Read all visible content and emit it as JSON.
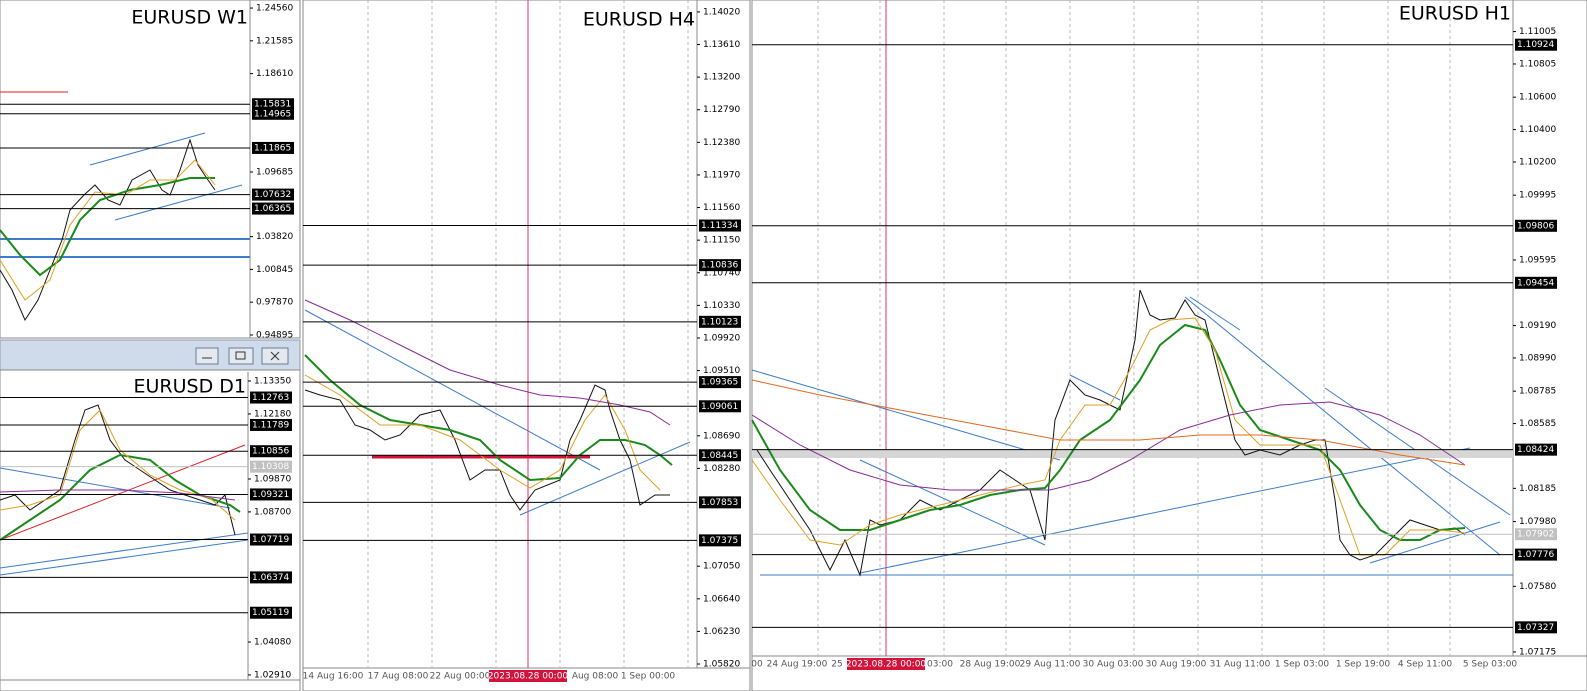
{
  "panels": [
    {
      "title": "EURUSD W1",
      "ylim": [
        0.9462,
        1.2529
      ],
      "yticks": [
        {
          "value": 1.2456,
          "label": "1.24560"
        },
        {
          "value": 1.21585,
          "label": "1.21585"
        },
        {
          "value": 1.1861,
          "label": "1.18610"
        },
        {
          "value": 1.09685,
          "label": "1.09685"
        },
        {
          "value": 1.0382,
          "label": "1.03820"
        },
        {
          "value": 1.00845,
          "label": "1.00845"
        },
        {
          "value": 0.9787,
          "label": "0.97870"
        },
        {
          "value": 0.94895,
          "label": "0.94895"
        }
      ],
      "levels": [
        {
          "value": 1.15831,
          "label": "1.15831"
        },
        {
          "value": 1.14965,
          "label": "1.14965"
        },
        {
          "value": 1.11865,
          "label": "1.11865"
        },
        {
          "value": 1.07632,
          "label": "1.07632"
        },
        {
          "value": 1.06365,
          "label": "1.06365"
        }
      ]
    },
    {
      "title": "EURUSD D1",
      "ylim": [
        1.0273,
        1.1367
      ],
      "yticks": [
        {
          "value": 1.1335,
          "label": "1.13350"
        },
        {
          "value": 1.1218,
          "label": "1.12180"
        },
        {
          "value": 1.0987,
          "label": "1.09870"
        },
        {
          "value": 1.087,
          "label": "1.08700"
        },
        {
          "value": 1.0408,
          "label": "1.04080"
        },
        {
          "value": 1.0291,
          "label": "1.02910"
        }
      ],
      "levels": [
        {
          "value": 1.12763,
          "label": "1.12763"
        },
        {
          "value": 1.11789,
          "label": "1.11789"
        },
        {
          "value": 1.10856,
          "label": "1.10856"
        },
        {
          "value": 1.09321,
          "label": "1.09321"
        },
        {
          "value": 1.07719,
          "label": "1.07719"
        },
        {
          "value": 1.06374,
          "label": "1.06374"
        },
        {
          "value": 1.05119,
          "label": "1.05119"
        }
      ],
      "current_price": {
        "value": 1.10308,
        "label": "1.10308"
      }
    },
    {
      "title": "EURUSD H4",
      "ylim": [
        1.0577,
        1.1417
      ],
      "yticks": [
        {
          "value": 1.1402,
          "label": "1.14020"
        },
        {
          "value": 1.1361,
          "label": "1.13610"
        },
        {
          "value": 1.132,
          "label": "1.13200"
        },
        {
          "value": 1.1279,
          "label": "1.12790"
        },
        {
          "value": 1.1238,
          "label": "1.12380"
        },
        {
          "value": 1.1197,
          "label": "1.11970"
        },
        {
          "value": 1.1156,
          "label": "1.11560"
        },
        {
          "value": 1.1115,
          "label": "1.11150"
        },
        {
          "value": 1.1074,
          "label": "1.10740"
        },
        {
          "value": 1.1033,
          "label": "1.10330"
        },
        {
          "value": 1.0992,
          "label": "1.09920"
        },
        {
          "value": 1.0951,
          "label": "1.09510"
        },
        {
          "value": 1.0869,
          "label": "1.08690"
        },
        {
          "value": 1.0828,
          "label": "1.08280"
        },
        {
          "value": 1.0705,
          "label": "1.07050"
        },
        {
          "value": 1.0664,
          "label": "1.06640"
        },
        {
          "value": 1.0623,
          "label": "1.06230"
        },
        {
          "value": 1.0582,
          "label": "1.05820"
        }
      ],
      "levels": [
        {
          "value": 1.11334,
          "label": "1.11334"
        },
        {
          "value": 1.10836,
          "label": "1.10836"
        },
        {
          "value": 1.10123,
          "label": "1.10123"
        },
        {
          "value": 1.09365,
          "label": "1.09365"
        },
        {
          "value": 1.09061,
          "label": "1.09061"
        },
        {
          "value": 1.08445,
          "label": "1.08445"
        },
        {
          "value": 1.07853,
          "label": "1.07853"
        },
        {
          "value": 1.07375,
          "label": "1.07375"
        }
      ],
      "time_labels": [
        "14 Aug 16:00",
        "17 Aug 08:00",
        "22 Aug 00:00",
        "Aug 08:00",
        "1 Sep 00:00"
      ],
      "cursor_label": "2023.08.28 00:00"
    },
    {
      "title": "EURUSD H1",
      "ylim": [
        1.0715,
        1.112
      ],
      "yticks": [
        {
          "value": 1.11005,
          "label": "1.11005"
        },
        {
          "value": 1.10805,
          "label": "1.10805"
        },
        {
          "value": 1.106,
          "label": "1.10600"
        },
        {
          "value": 1.104,
          "label": "1.10400"
        },
        {
          "value": 1.102,
          "label": "1.10200"
        },
        {
          "value": 1.09995,
          "label": "1.09995"
        },
        {
          "value": 1.09595,
          "label": "1.09595"
        },
        {
          "value": 1.0919,
          "label": "1.09190"
        },
        {
          "value": 1.0899,
          "label": "1.08990"
        },
        {
          "value": 1.08785,
          "label": "1.08785"
        },
        {
          "value": 1.08585,
          "label": "1.08585"
        },
        {
          "value": 1.08185,
          "label": "1.08185"
        },
        {
          "value": 1.0798,
          "label": "1.07980"
        },
        {
          "value": 1.0758,
          "label": "1.07580"
        },
        {
          "value": 1.07175,
          "label": "1.07175"
        }
      ],
      "levels": [
        {
          "value": 1.10924,
          "label": "1.10924"
        },
        {
          "value": 1.09806,
          "label": "1.09806"
        },
        {
          "value": 1.09454,
          "label": "1.09454"
        },
        {
          "value": 1.08424,
          "label": "1.08424"
        },
        {
          "value": 1.07776,
          "label": "1.07776"
        },
        {
          "value": 1.07327,
          "label": "1.07327"
        }
      ],
      "current_price": {
        "value": 1.07902,
        "label": "1.07902"
      },
      "time_labels": [
        "00",
        "24 Aug 19:00",
        "25",
        "03:00",
        "28 Aug 19:00",
        "29 Aug 11:00",
        "30 Aug 03:00",
        "30 Aug 19:00",
        "31 Aug 11:00",
        "1 Sep 03:00",
        "1 Sep 19:00",
        "4 Sep 11:00",
        "5 Sep 03:00"
      ],
      "cursor_label": "2023.08.28 00:00"
    }
  ]
}
